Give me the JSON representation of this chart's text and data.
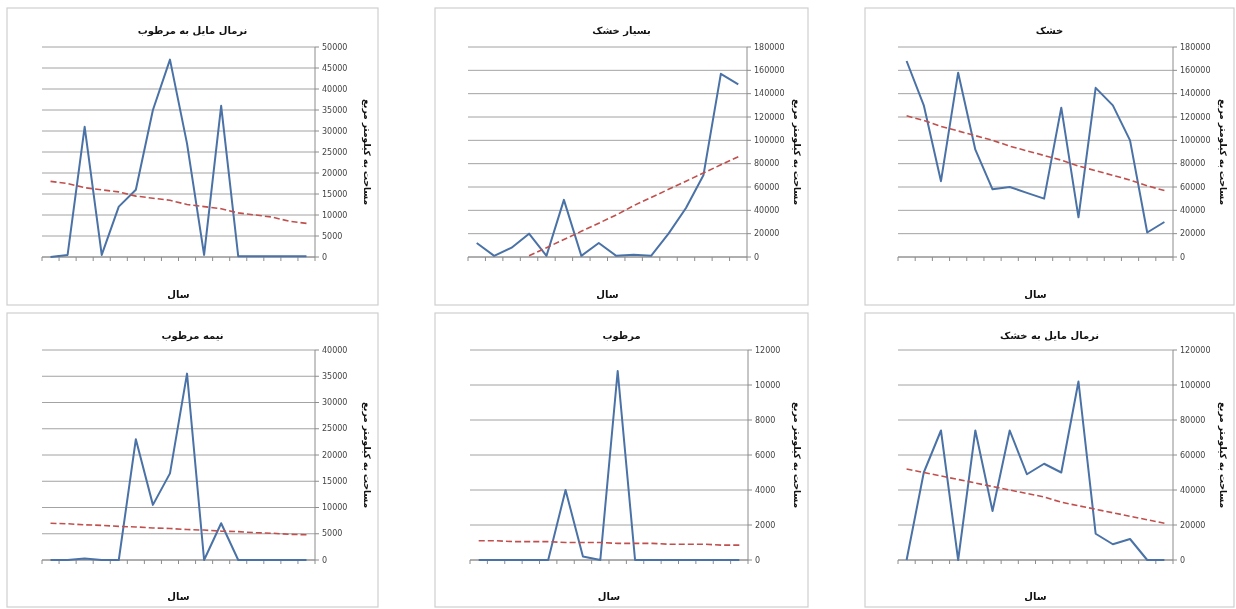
{
  "chart_data": [
    {
      "type": "line",
      "title": "نرمال مایل به مرطوب",
      "xlabel": "سال",
      "ylabel": "مساحت به کیلومتر مربع",
      "categories": [
        null,
        null,
        null,
        null,
        null,
        null,
        null,
        null,
        null,
        null,
        null,
        null,
        null,
        null,
        null,
        null
      ],
      "ylim": [
        0,
        50000
      ],
      "yticks": [
        0,
        5000,
        10000,
        15000,
        20000,
        25000,
        30000,
        35000,
        40000,
        45000,
        50000
      ],
      "grid": "y",
      "series": [
        {
          "color": "#4a72a6",
          "values": [
            0,
            500,
            31000,
            500,
            12000,
            16000,
            35000,
            47000,
            27000,
            500,
            36000,
            200,
            200,
            200,
            200,
            200
          ]
        },
        {
          "type": "line",
          "color": "#c0504d",
          "line_style": "dashed",
          "values": [
            18000,
            17500,
            16500,
            16000,
            15500,
            14500,
            14000,
            13500,
            12500,
            12000,
            11500,
            10500,
            10000,
            9500,
            8500,
            8000
          ]
        }
      ]
    },
    {
      "type": "line",
      "title": "بسیار خشک",
      "xlabel": "سال",
      "ylabel": "مساحت به کیلومتر مربع",
      "categories": [
        null,
        null,
        null,
        null,
        null,
        null,
        null,
        null,
        null,
        null,
        null,
        null,
        null,
        null,
        null,
        null
      ],
      "ylim": [
        0,
        180000
      ],
      "yticks": [
        0,
        20000,
        40000,
        60000,
        80000,
        100000,
        120000,
        140000,
        160000,
        180000
      ],
      "grid": "y",
      "series": [
        {
          "color": "#4a72a6",
          "values": [
            12000,
            1000,
            8000,
            20000,
            1000,
            49000,
            1000,
            12000,
            1000,
            2000,
            1000,
            20000,
            42000,
            70000,
            157000,
            148000
          ]
        },
        {
          "type": "line",
          "color": "#c0504d",
          "line_style": "dashed",
          "values": [
            null,
            null,
            null,
            1000,
            8000,
            15000,
            22000,
            29000,
            36000,
            44000,
            51000,
            58000,
            65000,
            72000,
            79000,
            86000
          ]
        }
      ]
    },
    {
      "type": "line",
      "title": "خشک",
      "xlabel": "سال",
      "ylabel": "مساحت به کیلومتر مربع",
      "categories": [
        null,
        null,
        null,
        null,
        null,
        null,
        null,
        null,
        null,
        null,
        null,
        null,
        null,
        null,
        null,
        null
      ],
      "ylim": [
        0,
        180000
      ],
      "yticks": [
        0,
        20000,
        40000,
        60000,
        80000,
        100000,
        120000,
        140000,
        160000,
        180000
      ],
      "grid": "y",
      "series": [
        {
          "color": "#4a72a6",
          "values": [
            168000,
            130000,
            65000,
            158000,
            92000,
            58000,
            60000,
            55000,
            50000,
            128000,
            34000,
            145000,
            130000,
            100000,
            21000,
            30000
          ]
        },
        {
          "type": "line",
          "color": "#c0504d",
          "line_style": "dashed",
          "values": [
            121000,
            117000,
            112000,
            108000,
            104000,
            100000,
            95000,
            91000,
            87000,
            83000,
            78000,
            74000,
            70000,
            66000,
            61000,
            57000
          ]
        }
      ]
    },
    {
      "type": "line",
      "title": "نیمه مرطوب",
      "xlabel": "سال",
      "ylabel": "مساحت به کیلومتر مربع",
      "categories": [
        null,
        null,
        null,
        null,
        null,
        null,
        null,
        null,
        null,
        null,
        null,
        null,
        null,
        null,
        null,
        null
      ],
      "ylim": [
        0,
        40000
      ],
      "yticks": [
        0,
        5000,
        10000,
        15000,
        20000,
        25000,
        30000,
        35000,
        40000
      ],
      "grid": "y",
      "series": [
        {
          "color": "#4a72a6",
          "values": [
            0,
            0,
            300,
            0,
            0,
            23000,
            10500,
            16500,
            35500,
            0,
            7000,
            0,
            0,
            0,
            0,
            0
          ]
        },
        {
          "type": "line",
          "color": "#c0504d",
          "line_style": "dashed",
          "values": [
            7000,
            6900,
            6700,
            6600,
            6400,
            6300,
            6100,
            6000,
            5800,
            5700,
            5500,
            5400,
            5200,
            5100,
            4900,
            4800
          ]
        }
      ]
    },
    {
      "type": "line",
      "title": "مرطوب",
      "xlabel": "سال",
      "ylabel": "مساحت به کیلومتر مربع",
      "categories": [
        null,
        null,
        null,
        null,
        null,
        null,
        null,
        null,
        null,
        null,
        null,
        null,
        null,
        null,
        null,
        null
      ],
      "ylim": [
        0,
        12000
      ],
      "yticks": [
        0,
        2000,
        4000,
        6000,
        8000,
        10000,
        12000
      ],
      "grid": "y",
      "series": [
        {
          "color": "#4a72a6",
          "values": [
            0,
            0,
            0,
            0,
            0,
            4000,
            200,
            0,
            10800,
            0,
            0,
            0,
            0,
            0,
            0,
            0
          ]
        },
        {
          "type": "line",
          "color": "#c0504d",
          "line_style": "dashed",
          "values": [
            1100,
            1100,
            1050,
            1050,
            1050,
            1000,
            1000,
            1000,
            950,
            950,
            950,
            900,
            900,
            900,
            850,
            850
          ]
        }
      ]
    },
    {
      "type": "line",
      "title": "نرمال مایل به خشک",
      "xlabel": "سال",
      "ylabel": "مساحت به کیلومتر مربع",
      "categories": [
        null,
        null,
        null,
        null,
        null,
        null,
        null,
        null,
        null,
        null,
        null,
        null,
        null,
        null,
        null,
        null
      ],
      "ylim": [
        0,
        120000
      ],
      "yticks": [
        0,
        20000,
        40000,
        60000,
        80000,
        100000,
        120000
      ],
      "grid": "y",
      "series": [
        {
          "color": "#4a72a6",
          "values": [
            0,
            50000,
            74000,
            0,
            74000,
            28000,
            74000,
            49000,
            55000,
            50000,
            102000,
            15000,
            9000,
            12000,
            0,
            0
          ]
        },
        {
          "type": "line",
          "color": "#c0504d",
          "line_style": "dashed",
          "values": [
            52000,
            50000,
            48000,
            46000,
            44000,
            42000,
            40000,
            38000,
            36000,
            33000,
            31000,
            29000,
            27000,
            25000,
            23000,
            21000
          ]
        }
      ]
    }
  ]
}
